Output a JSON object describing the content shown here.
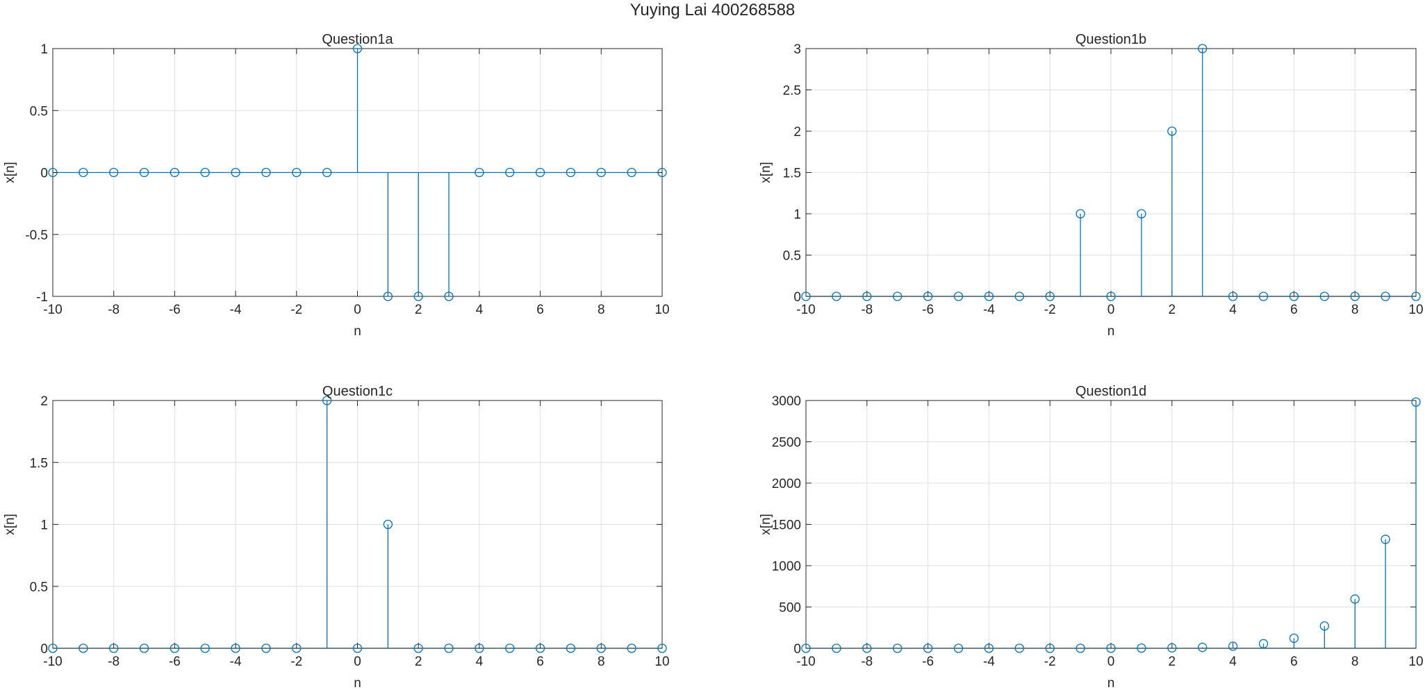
{
  "figure": {
    "title": "Yuying Lai 400268588"
  },
  "style": {
    "stem_color": "#0072bd",
    "axis_color": "#262626",
    "grid_color": "#dfdfdf"
  },
  "chart_data": [
    {
      "type": "stem",
      "title": "Question1a",
      "xlabel": "n",
      "ylabel": "x[n]",
      "xlim": [
        -10,
        10
      ],
      "ylim": [
        -1,
        1
      ],
      "xticks": [
        -10,
        -8,
        -6,
        -4,
        -2,
        0,
        2,
        4,
        6,
        8,
        10
      ],
      "xtick_labels": [
        "-10",
        "-8",
        "-6",
        "-4",
        "-2",
        "0",
        "2",
        "4",
        "6",
        "8",
        "10"
      ],
      "yticks": [
        -1,
        -0.5,
        0,
        0.5,
        1
      ],
      "ytick_labels": [
        "-1",
        "-0.5",
        "0",
        "0.5",
        "1"
      ],
      "grid": true,
      "x": [
        -10,
        -9,
        -8,
        -7,
        -6,
        -5,
        -4,
        -3,
        -2,
        -1,
        0,
        1,
        2,
        3,
        4,
        5,
        6,
        7,
        8,
        9,
        10
      ],
      "y": [
        0,
        0,
        0,
        0,
        0,
        0,
        0,
        0,
        0,
        0,
        1,
        -1,
        -1,
        -1,
        0,
        0,
        0,
        0,
        0,
        0,
        0
      ]
    },
    {
      "type": "stem",
      "title": "Question1b",
      "xlabel": "n",
      "ylabel": "x[n]",
      "xlim": [
        -10,
        10
      ],
      "ylim": [
        0,
        3
      ],
      "xticks": [
        -10,
        -8,
        -6,
        -4,
        -2,
        0,
        2,
        4,
        6,
        8,
        10
      ],
      "xtick_labels": [
        "-10",
        "-8",
        "-6",
        "-4",
        "-2",
        "0",
        "2",
        "4",
        "6",
        "8",
        "10"
      ],
      "yticks": [
        0,
        0.5,
        1,
        1.5,
        2,
        2.5,
        3
      ],
      "ytick_labels": [
        "0",
        "0.5",
        "1",
        "1.5",
        "2",
        "2.5",
        "3"
      ],
      "grid": true,
      "x": [
        -10,
        -9,
        -8,
        -7,
        -6,
        -5,
        -4,
        -3,
        -2,
        -1,
        0,
        1,
        2,
        3,
        4,
        5,
        6,
        7,
        8,
        9,
        10
      ],
      "y": [
        0,
        0,
        0,
        0,
        0,
        0,
        0,
        0,
        0,
        1,
        0,
        1,
        2,
        3,
        0,
        0,
        0,
        0,
        0,
        0,
        0
      ]
    },
    {
      "type": "stem",
      "title": "Question1c",
      "xlabel": "n",
      "ylabel": "x[n]",
      "xlim": [
        -10,
        10
      ],
      "ylim": [
        0,
        2
      ],
      "xticks": [
        -10,
        -8,
        -6,
        -4,
        -2,
        0,
        2,
        4,
        6,
        8,
        10
      ],
      "xtick_labels": [
        "-10",
        "-8",
        "-6",
        "-4",
        "-2",
        "0",
        "2",
        "4",
        "6",
        "8",
        "10"
      ],
      "yticks": [
        0,
        0.5,
        1,
        1.5,
        2
      ],
      "ytick_labels": [
        "0",
        "0.5",
        "1",
        "1.5",
        "2"
      ],
      "grid": true,
      "x": [
        -10,
        -9,
        -8,
        -7,
        -6,
        -5,
        -4,
        -3,
        -2,
        -1,
        0,
        1,
        2,
        3,
        4,
        5,
        6,
        7,
        8,
        9,
        10
      ],
      "y": [
        0,
        0,
        0,
        0,
        0,
        0,
        0,
        0,
        0,
        2,
        0,
        1,
        0,
        0,
        0,
        0,
        0,
        0,
        0,
        0,
        0
      ]
    },
    {
      "type": "stem",
      "title": "Question1d",
      "xlabel": "n",
      "ylabel": "x[n]",
      "xlim": [
        -10,
        10
      ],
      "ylim": [
        0,
        3000
      ],
      "xticks": [
        -10,
        -8,
        -6,
        -4,
        -2,
        0,
        2,
        4,
        6,
        8,
        10
      ],
      "xtick_labels": [
        "-10",
        "-8",
        "-6",
        "-4",
        "-2",
        "0",
        "2",
        "4",
        "6",
        "8",
        "10"
      ],
      "yticks": [
        0,
        500,
        1000,
        1500,
        2000,
        2500,
        3000
      ],
      "ytick_labels": [
        "0",
        "500",
        "1000",
        "1500",
        "2000",
        "2500",
        "3000"
      ],
      "grid": true,
      "x": [
        -10,
        -9,
        -8,
        -7,
        -6,
        -5,
        -4,
        -3,
        -2,
        -1,
        0,
        1,
        2,
        3,
        4,
        5,
        6,
        7,
        8,
        9,
        10
      ],
      "y": [
        0,
        0,
        0,
        0,
        0,
        0,
        0,
        0,
        0,
        0,
        1,
        2,
        5,
        11,
        25,
        55,
        122,
        270,
        596,
        1319,
        2981
      ]
    }
  ]
}
